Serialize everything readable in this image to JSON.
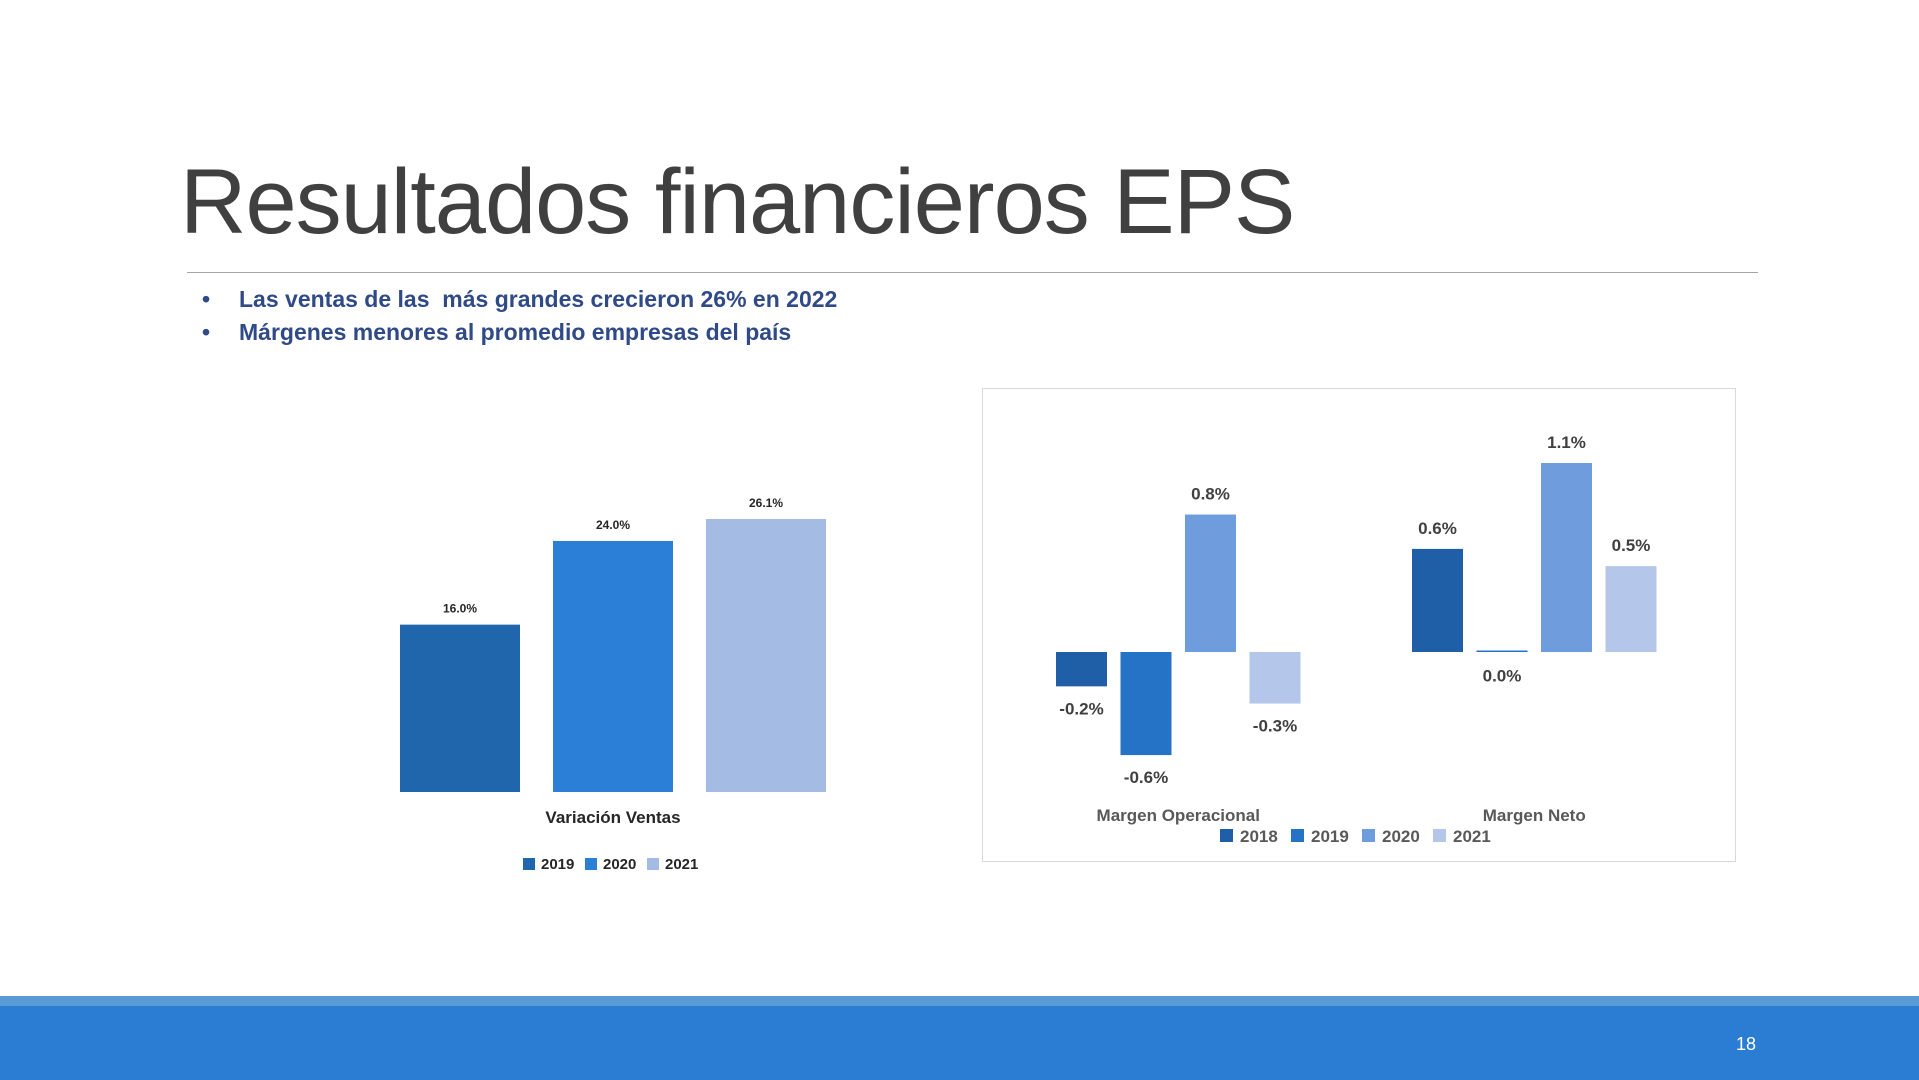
{
  "slide": {
    "title": "Resultados financieros EPS",
    "bullets": [
      "Las ventas de las  más grandes crecieron 26% en 2022",
      "Márgenes menores al promedio empresas del país"
    ],
    "page_number": "18"
  },
  "colors": {
    "c2018": "#1f5fa8",
    "c2019": "#2473c7",
    "c2020": "#6f9cdd",
    "c2021": "#b4c7ea"
  },
  "chart_data": [
    {
      "type": "bar",
      "categories": [
        "Variación Ventas"
      ],
      "series": [
        {
          "name": "2019",
          "values": [
            16.0
          ],
          "labels": [
            "16.0%"
          ],
          "color": "#1f66ad"
        },
        {
          "name": "2020",
          "values": [
            24.0
          ],
          "labels": [
            "24.0%"
          ],
          "color": "#2b7fd7"
        },
        {
          "name": "2021",
          "values": [
            26.1
          ],
          "labels": [
            "26.1%"
          ],
          "color": "#a4bbe4"
        }
      ],
      "ylim": [
        0,
        26.1
      ],
      "grid": false,
      "legend": "bottom"
    },
    {
      "type": "bar",
      "categories": [
        "Margen Operacional",
        "Margen Neto"
      ],
      "series": [
        {
          "name": "2018",
          "values": [
            -0.2,
            0.6
          ],
          "labels": [
            "-0.2%",
            "0.6%"
          ],
          "color": "#1f5fa8"
        },
        {
          "name": "2019",
          "values": [
            -0.6,
            0.0
          ],
          "labels": [
            "-0.6%",
            "0.0%"
          ],
          "color": "#2473c7"
        },
        {
          "name": "2020",
          "values": [
            0.8,
            1.1
          ],
          "labels": [
            "0.8%",
            "1.1%"
          ],
          "color": "#6f9cdd"
        },
        {
          "name": "2021",
          "values": [
            -0.3,
            0.5
          ],
          "labels": [
            "-0.3%",
            "0.5%"
          ],
          "color": "#b4c7ea"
        }
      ],
      "ylim": [
        -0.6,
        1.1
      ],
      "grid": false,
      "legend": "bottom"
    }
  ]
}
